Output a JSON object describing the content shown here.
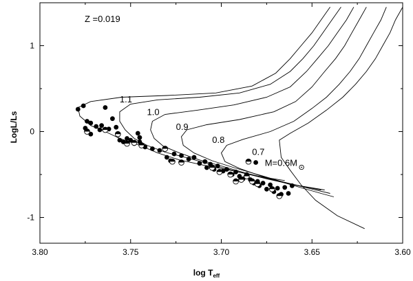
{
  "chart_data": {
    "type": "scatter",
    "title": "",
    "annotation_z": "Z =0.019",
    "xlabel_main": "log T",
    "xlabel_sub": "eff",
    "ylabel": "LogL/Ls",
    "xlim": [
      3.8,
      3.6
    ],
    "ylim": [
      -1.3,
      1.5
    ],
    "x_ticks": [
      3.8,
      3.75,
      3.7,
      3.65,
      3.6
    ],
    "x_tick_labels": [
      "3.80",
      "3.75",
      "3.70",
      "3.65",
      "3.60"
    ],
    "y_ticks": [
      -1,
      0,
      1
    ],
    "y_tick_labels": [
      "-1",
      "0",
      "1"
    ],
    "track_labels": [
      {
        "text": "1.1",
        "x": 3.756,
        "y": 0.38
      },
      {
        "text": "1.0",
        "x": 3.741,
        "y": 0.23
      },
      {
        "text": "0.9",
        "x": 3.725,
        "y": 0.06
      },
      {
        "text": "0.8",
        "x": 3.705,
        "y": -0.09
      },
      {
        "text": "0.7",
        "x": 3.683,
        "y": -0.23
      },
      {
        "text": "M=0.6M",
        "x": 3.676,
        "y": -0.36,
        "suffix": "sun"
      }
    ],
    "series": [
      {
        "kind": "track",
        "label": "1.1",
        "points": [
          [
            3.64,
            1.45
          ],
          [
            3.645,
            1.3
          ],
          [
            3.65,
            1.15
          ],
          [
            3.656,
            1.0
          ],
          [
            3.662,
            0.85
          ],
          [
            3.67,
            0.68
          ],
          [
            3.683,
            0.53
          ],
          [
            3.703,
            0.45
          ],
          [
            3.73,
            0.42
          ],
          [
            3.755,
            0.4
          ],
          [
            3.772,
            0.35
          ],
          [
            3.779,
            0.28
          ],
          [
            3.778,
            0.18
          ],
          [
            3.772,
            0.07
          ],
          [
            3.764,
            0.0
          ],
          [
            3.756,
            -0.08
          ],
          [
            3.745,
            -0.16
          ],
          [
            3.735,
            -0.25
          ],
          [
            3.723,
            -0.33
          ],
          [
            3.71,
            -0.39
          ],
          [
            3.695,
            -0.45
          ],
          [
            3.68,
            -0.52
          ],
          [
            3.665,
            -0.57
          ]
        ]
      },
      {
        "kind": "track",
        "label": "1.0",
        "points": [
          [
            3.634,
            1.45
          ],
          [
            3.639,
            1.3
          ],
          [
            3.644,
            1.15
          ],
          [
            3.649,
            1.0
          ],
          [
            3.655,
            0.85
          ],
          [
            3.662,
            0.7
          ],
          [
            3.673,
            0.55
          ],
          [
            3.69,
            0.45
          ],
          [
            3.712,
            0.4
          ],
          [
            3.735,
            0.37
          ],
          [
            3.75,
            0.32
          ],
          [
            3.756,
            0.23
          ],
          [
            3.756,
            0.12
          ],
          [
            3.753,
            0.02
          ],
          [
            3.748,
            -0.08
          ],
          [
            3.741,
            -0.16
          ],
          [
            3.731,
            -0.24
          ],
          [
            3.718,
            -0.31
          ],
          [
            3.703,
            -0.4
          ],
          [
            3.69,
            -0.47
          ],
          [
            3.675,
            -0.55
          ],
          [
            3.66,
            -0.62
          ],
          [
            3.645,
            -0.68
          ]
        ]
      },
      {
        "kind": "track",
        "label": "0.9",
        "points": [
          [
            3.627,
            1.45
          ],
          [
            3.631,
            1.3
          ],
          [
            3.636,
            1.15
          ],
          [
            3.641,
            1.0
          ],
          [
            3.647,
            0.85
          ],
          [
            3.653,
            0.7
          ],
          [
            3.662,
            0.52
          ],
          [
            3.675,
            0.4
          ],
          [
            3.693,
            0.31
          ],
          [
            3.713,
            0.25
          ],
          [
            3.731,
            0.2
          ],
          [
            3.738,
            0.12
          ],
          [
            3.739,
            0.02
          ],
          [
            3.737,
            -0.08
          ],
          [
            3.732,
            -0.17
          ],
          [
            3.723,
            -0.25
          ],
          [
            3.712,
            -0.33
          ],
          [
            3.7,
            -0.4
          ],
          [
            3.687,
            -0.48
          ],
          [
            3.672,
            -0.56
          ],
          [
            3.657,
            -0.63
          ],
          [
            3.643,
            -0.68
          ]
        ]
      },
      {
        "kind": "track",
        "label": "0.8",
        "points": [
          [
            3.62,
            1.45
          ],
          [
            3.624,
            1.3
          ],
          [
            3.628,
            1.15
          ],
          [
            3.632,
            1.0
          ],
          [
            3.637,
            0.85
          ],
          [
            3.643,
            0.7
          ],
          [
            3.65,
            0.52
          ],
          [
            3.659,
            0.35
          ],
          [
            3.671,
            0.23
          ],
          [
            3.69,
            0.14
          ],
          [
            3.708,
            0.08
          ],
          [
            3.719,
            0.02
          ],
          [
            3.722,
            -0.06
          ],
          [
            3.721,
            -0.16
          ],
          [
            3.715,
            -0.25
          ],
          [
            3.705,
            -0.34
          ],
          [
            3.693,
            -0.42
          ],
          [
            3.68,
            -0.5
          ],
          [
            3.667,
            -0.58
          ],
          [
            3.652,
            -0.66
          ],
          [
            3.64,
            -0.72
          ]
        ]
      },
      {
        "kind": "track",
        "label": "0.7",
        "points": [
          [
            3.609,
            1.45
          ],
          [
            3.612,
            1.3
          ],
          [
            3.616,
            1.15
          ],
          [
            3.62,
            1.0
          ],
          [
            3.624,
            0.85
          ],
          [
            3.629,
            0.7
          ],
          [
            3.635,
            0.55
          ],
          [
            3.642,
            0.4
          ],
          [
            3.65,
            0.27
          ],
          [
            3.66,
            0.12
          ],
          [
            3.673,
            0.0
          ],
          [
            3.688,
            -0.09
          ],
          [
            3.697,
            -0.16
          ],
          [
            3.7,
            -0.25
          ],
          [
            3.698,
            -0.35
          ],
          [
            3.69,
            -0.43
          ],
          [
            3.679,
            -0.51
          ],
          [
            3.668,
            -0.58
          ],
          [
            3.655,
            -0.66
          ],
          [
            3.645,
            -0.72
          ],
          [
            3.638,
            -0.76
          ]
        ]
      },
      {
        "kind": "track",
        "label": "M=0.6M",
        "points": [
          [
            3.6,
            1.45
          ],
          [
            3.604,
            1.3
          ],
          [
            3.607,
            1.15
          ],
          [
            3.611,
            1.0
          ],
          [
            3.615,
            0.85
          ],
          [
            3.62,
            0.7
          ],
          [
            3.626,
            0.55
          ],
          [
            3.633,
            0.4
          ],
          [
            3.642,
            0.25
          ],
          [
            3.652,
            0.1
          ],
          [
            3.662,
            -0.02
          ],
          [
            3.668,
            -0.1
          ],
          [
            3.667,
            -0.3
          ],
          [
            3.662,
            -0.45
          ],
          [
            3.656,
            -0.62
          ],
          [
            3.648,
            -0.8
          ],
          [
            3.636,
            -0.98
          ],
          [
            3.621,
            -1.13
          ]
        ]
      },
      {
        "kind": "filled",
        "points": [
          [
            3.779,
            0.26
          ],
          [
            3.776,
            0.3
          ],
          [
            3.774,
            0.12
          ],
          [
            3.772,
            0.1
          ],
          [
            3.769,
            0.06
          ],
          [
            3.767,
            0.02
          ],
          [
            3.775,
            0.04
          ],
          [
            3.772,
            -0.03
          ],
          [
            3.766,
            0.07
          ],
          [
            3.764,
            0.28
          ],
          [
            3.762,
            0.03
          ],
          [
            3.76,
            0.15
          ],
          [
            3.758,
            0.05
          ],
          [
            3.757,
            -0.04
          ],
          [
            3.756,
            -0.1
          ],
          [
            3.754,
            -0.12
          ],
          [
            3.752,
            -0.08
          ],
          [
            3.75,
            -0.1
          ],
          [
            3.748,
            -0.14
          ],
          [
            3.746,
            -0.02
          ],
          [
            3.745,
            -0.12
          ],
          [
            3.742,
            -0.18
          ],
          [
            3.738,
            -0.2
          ],
          [
            3.734,
            -0.22
          ],
          [
            3.73,
            -0.3
          ],
          [
            3.726,
            -0.26
          ],
          [
            3.722,
            -0.28
          ],
          [
            3.718,
            -0.32
          ],
          [
            3.715,
            -0.3
          ],
          [
            3.712,
            -0.37
          ],
          [
            3.708,
            -0.42
          ],
          [
            3.706,
            -0.38
          ],
          [
            3.704,
            -0.44
          ],
          [
            3.702,
            -0.4
          ],
          [
            3.699,
            -0.46
          ],
          [
            3.697,
            -0.44
          ],
          [
            3.694,
            -0.5
          ],
          [
            3.692,
            -0.47
          ],
          [
            3.69,
            -0.52
          ],
          [
            3.688,
            -0.55
          ],
          [
            3.686,
            -0.5
          ],
          [
            3.684,
            -0.56
          ],
          [
            3.682,
            -0.6
          ],
          [
            3.68,
            -0.58
          ],
          [
            3.679,
            -0.63
          ],
          [
            3.677,
            -0.6
          ],
          [
            3.675,
            -0.67
          ],
          [
            3.673,
            -0.62
          ],
          [
            3.671,
            -0.7
          ],
          [
            3.669,
            -0.66
          ],
          [
            3.667,
            -0.73
          ],
          [
            3.665,
            -0.65
          ],
          [
            3.663,
            -0.72
          ],
          [
            3.661,
            -0.63
          ],
          [
            3.681,
            -0.36
          ],
          [
            3.709,
            -0.35
          ],
          [
            3.728,
            -0.34
          ],
          [
            3.745,
            -0.07
          ]
        ]
      },
      {
        "kind": "half-filled",
        "points": [
          [
            3.774,
            0.0
          ],
          [
            3.764,
            0.02
          ],
          [
            3.757,
            -0.03
          ],
          [
            3.752,
            -0.14
          ],
          [
            3.748,
            -0.13
          ],
          [
            3.744,
            -0.16
          ],
          [
            3.731,
            -0.2
          ],
          [
            3.727,
            -0.35
          ],
          [
            3.722,
            -0.36
          ],
          [
            3.705,
            -0.42
          ],
          [
            3.701,
            -0.47
          ],
          [
            3.695,
            -0.5
          ],
          [
            3.689,
            -0.56
          ],
          [
            3.686,
            -0.52
          ],
          [
            3.683,
            -0.58
          ],
          [
            3.68,
            -0.61
          ],
          [
            3.672,
            -0.67
          ],
          [
            3.668,
            -0.75
          ],
          [
            3.692,
            -0.58
          ],
          [
            3.685,
            -0.35
          ]
        ]
      }
    ]
  }
}
